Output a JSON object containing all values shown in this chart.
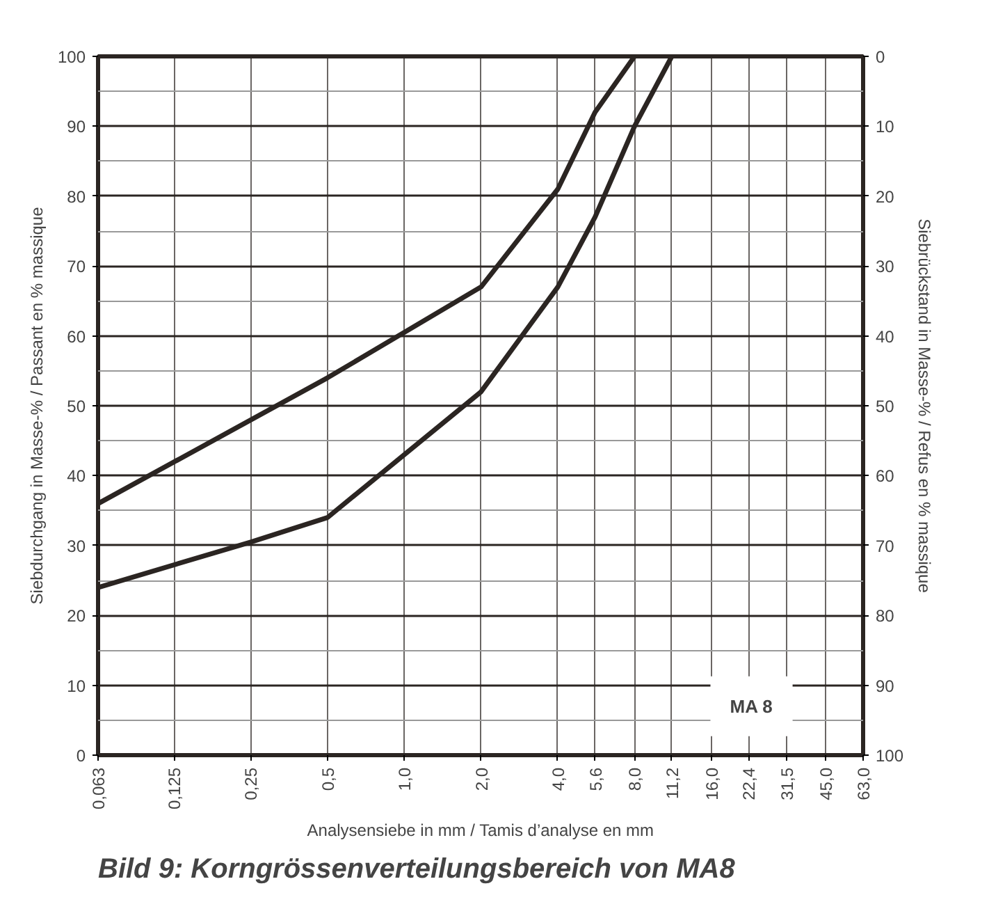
{
  "chart_data": {
    "type": "line",
    "title": "Bild 9: Korngrössenverteilungsbereich von MA8",
    "xlabel": "Analysensiebe in mm / Tamis d’analyse en mm",
    "ylabel": "Siebdurchgang in Masse-% / Passant en % massique",
    "y2label": "Siebrückstand in Masse-% / Refus en % massique",
    "annotations": [
      "MA 8"
    ],
    "log": "x",
    "grid": true,
    "line_style": "solid",
    "xlim": [
      0.063,
      63
    ],
    "ylim": [
      0,
      100
    ],
    "y2lim": [
      100,
      0
    ],
    "xticks": [
      {
        "value": 0.063,
        "label": "0,063"
      },
      {
        "value": 0.125,
        "label": "0,125"
      },
      {
        "value": 0.25,
        "label": "0,25"
      },
      {
        "value": 0.5,
        "label": "0,5"
      },
      {
        "value": 1.0,
        "label": "1,0"
      },
      {
        "value": 2.0,
        "label": "2,0"
      },
      {
        "value": 4.0,
        "label": "4,0"
      },
      {
        "value": 5.6,
        "label": "5,6"
      },
      {
        "value": 8.0,
        "label": "8,0"
      },
      {
        "value": 11.2,
        "label": "11,2"
      },
      {
        "value": 16.0,
        "label": "16,0"
      },
      {
        "value": 22.4,
        "label": "22,4"
      },
      {
        "value": 31.5,
        "label": "31,5"
      },
      {
        "value": 45.0,
        "label": "45,0"
      },
      {
        "value": 63.0,
        "label": "63,0"
      }
    ],
    "yticks": [
      0,
      10,
      20,
      30,
      40,
      50,
      60,
      70,
      80,
      90,
      100
    ],
    "y2ticks": [
      0,
      10,
      20,
      30,
      40,
      50,
      60,
      70,
      80,
      90,
      100
    ],
    "series": [
      {
        "color": "#2b2522",
        "x": [
          0.063,
          0.5,
          2.0,
          4.0,
          5.6,
          8.0
        ],
        "values": [
          36,
          54,
          67,
          81,
          92,
          100
        ]
      },
      {
        "color": "#2b2522",
        "x": [
          0.063,
          0.25,
          0.5,
          2.0,
          4.0,
          5.6,
          8.0,
          11.2
        ],
        "values": [
          24,
          30.5,
          34,
          52,
          67,
          77,
          90,
          100
        ]
      }
    ]
  }
}
